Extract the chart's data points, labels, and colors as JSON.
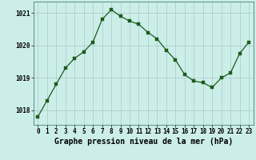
{
  "x": [
    0,
    1,
    2,
    3,
    4,
    5,
    6,
    7,
    8,
    9,
    10,
    11,
    12,
    13,
    14,
    15,
    16,
    17,
    18,
    19,
    20,
    21,
    22,
    23
  ],
  "y": [
    1017.8,
    1018.3,
    1018.8,
    1019.3,
    1019.6,
    1019.8,
    1020.1,
    1020.8,
    1021.1,
    1020.9,
    1020.75,
    1020.65,
    1020.4,
    1020.2,
    1019.85,
    1019.55,
    1019.1,
    1018.9,
    1018.85,
    1018.7,
    1019.0,
    1019.15,
    1019.75,
    1020.1
  ],
  "title": "Graphe pression niveau de la mer (hPa)",
  "bg_color": "#cceee8",
  "line_color": "#1a5c1a",
  "marker_color": "#1a5c1a",
  "grid_color_major": "#aac8c8",
  "grid_color_minor": "#c8e0dc",
  "yticks": [
    1018,
    1019,
    1020,
    1021
  ],
  "ylim": [
    1017.55,
    1021.35
  ],
  "xlim": [
    -0.5,
    23.5
  ],
  "tick_fontsize": 5.5,
  "title_fontsize": 7.0
}
